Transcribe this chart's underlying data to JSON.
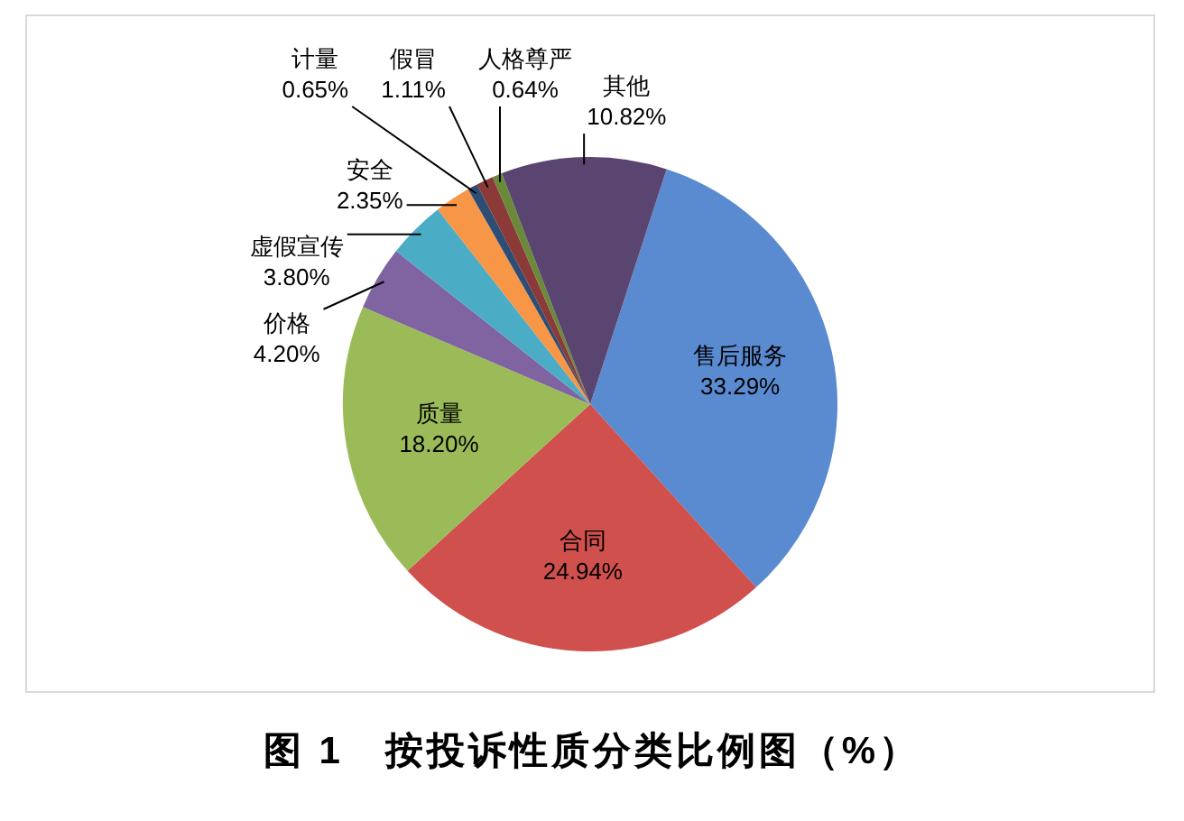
{
  "chart_data": {
    "type": "pie",
    "title": "图 1　按投诉性质分类比例图（%）",
    "categories": [
      "售后服务",
      "合同",
      "质量",
      "价格",
      "虚假宣传",
      "安全",
      "计量",
      "假冒",
      "人格尊严",
      "其他"
    ],
    "values": [
      33.29,
      24.94,
      18.2,
      4.2,
      3.8,
      2.35,
      0.65,
      1.11,
      0.64,
      10.82
    ],
    "value_labels": [
      "33.29%",
      "24.94%",
      "18.20%",
      "4.20%",
      "3.80%",
      "2.35%",
      "0.65%",
      "1.11%",
      "0.64%",
      "10.82%"
    ],
    "colors": [
      "#5a8ad0",
      "#d0504d",
      "#9bbb59",
      "#8064a2",
      "#4bacc6",
      "#f79646",
      "#2c4d75",
      "#8b3a38",
      "#6a8a3a",
      "#5a4470"
    ],
    "legend": false
  }
}
